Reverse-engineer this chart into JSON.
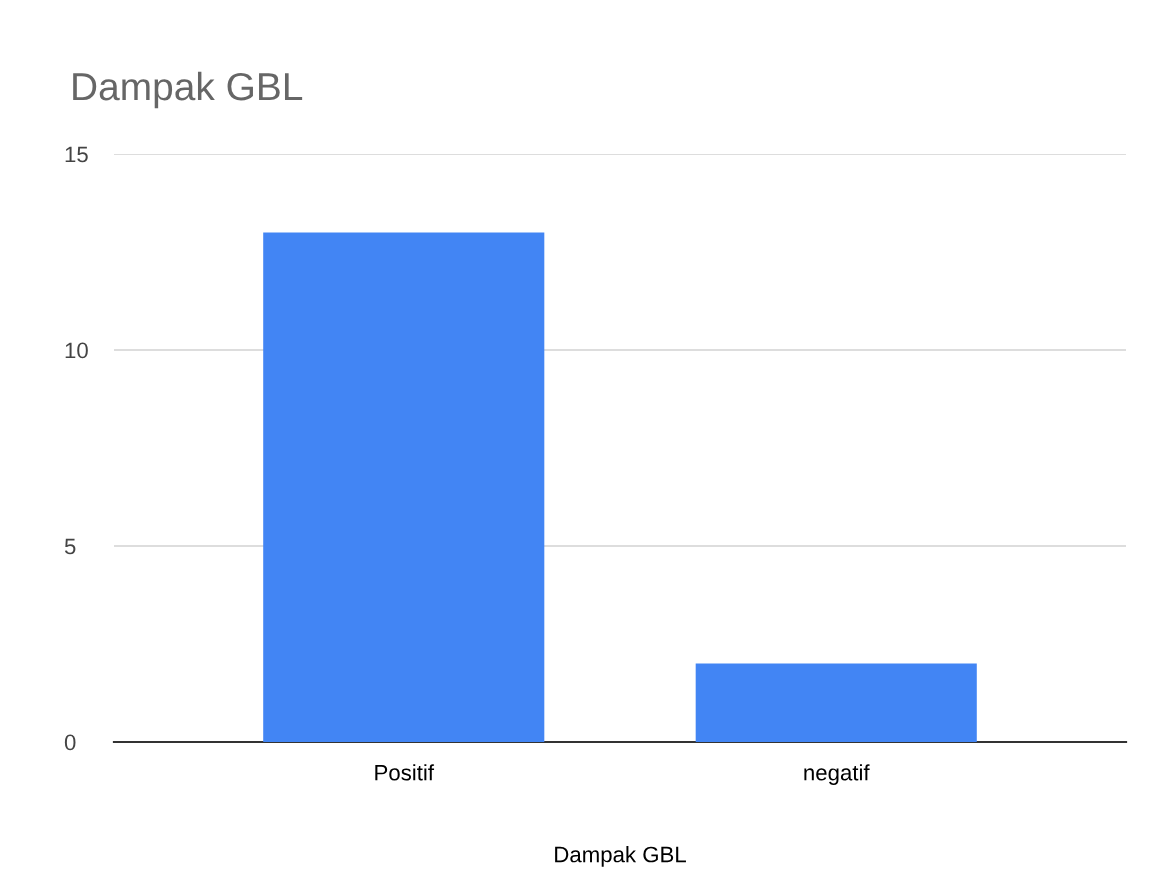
{
  "chart_data": {
    "type": "bar",
    "title": "Dampak GBL",
    "xlabel": "Dampak GBL",
    "categories": [
      "Positif",
      "negatif"
    ],
    "values": [
      13,
      2
    ],
    "color": "#4285f4",
    "ylim": [
      0,
      15
    ],
    "yticks": [
      0,
      5,
      10,
      15
    ],
    "grid": "y",
    "legend": false
  }
}
